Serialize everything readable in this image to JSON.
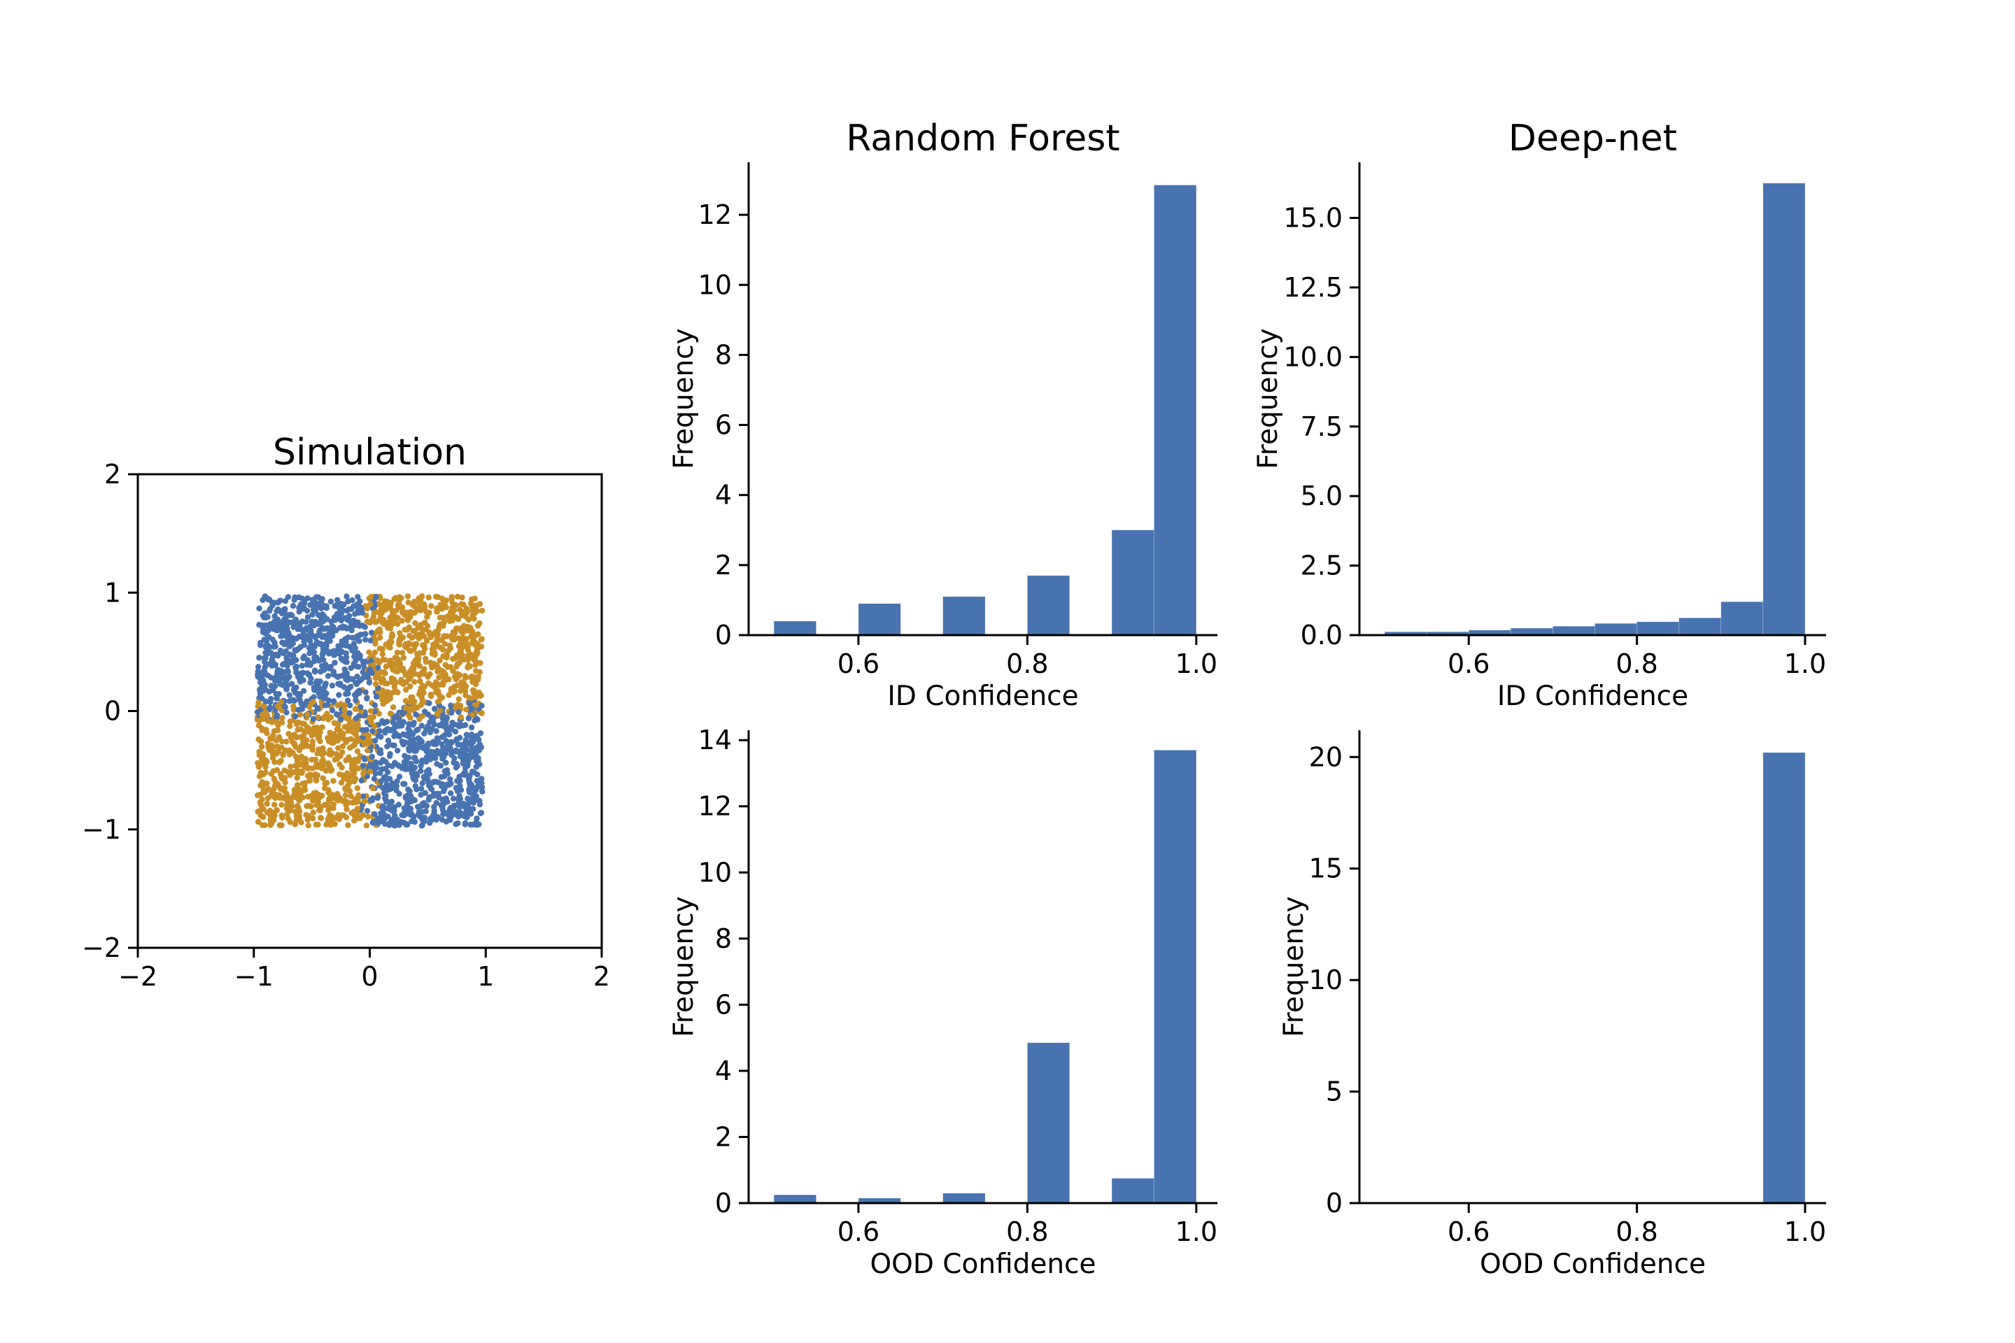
{
  "chart_data": [
    {
      "id": "simulation",
      "type": "scatter",
      "title": "Simulation",
      "xlim": [
        -2,
        2
      ],
      "ylim": [
        -2,
        2
      ],
      "xticks": [
        -2,
        -1,
        0,
        1,
        2
      ],
      "yticks": [
        -2,
        -1,
        0,
        1,
        2
      ],
      "xtick_labels": [
        "−2",
        "−1",
        "0",
        "1",
        "2"
      ],
      "ytick_labels": [
        "−2",
        "−1",
        "0",
        "1",
        "2"
      ],
      "grid": false,
      "description": "Gaussian XOR-like simulation, uniform points in [-1,1]^2; class 0 in quadrants II and IV, class 1 in quadrants I and III",
      "series": [
        {
          "color": "#4873b0",
          "region": "x*y < 0"
        },
        {
          "color": "#c98f27",
          "region": "x*y > 0"
        }
      ]
    },
    {
      "id": "rf-id",
      "type": "bar",
      "title": "Random Forest",
      "xlabel": "ID Confidence",
      "ylabel": "Frequency",
      "xlim": [
        0.47,
        1.025
      ],
      "ylim": [
        0,
        13.5
      ],
      "xticks": [
        0.6,
        0.8,
        1.0
      ],
      "xtick_labels": [
        "0.6",
        "0.8",
        "1.0"
      ],
      "yticks": [
        0,
        2,
        4,
        6,
        8,
        10,
        12
      ],
      "ytick_labels": [
        "0",
        "2",
        "4",
        "6",
        "8",
        "10",
        "12"
      ],
      "bin_edges": [
        0.5,
        0.55,
        0.6,
        0.65,
        0.7,
        0.75,
        0.8,
        0.85,
        0.9,
        0.95,
        1.0
      ],
      "values": [
        0.4,
        0,
        0.9,
        0,
        1.1,
        0,
        1.7,
        0,
        3.0,
        12.85
      ],
      "color": "#4873b0"
    },
    {
      "id": "dn-id",
      "type": "bar",
      "title": "Deep-net",
      "xlabel": "ID Confidence",
      "ylabel": "Frequency",
      "xlim": [
        0.47,
        1.025
      ],
      "ylim": [
        0,
        17
      ],
      "xticks": [
        0.6,
        0.8,
        1.0
      ],
      "xtick_labels": [
        "0.6",
        "0.8",
        "1.0"
      ],
      "yticks": [
        0,
        2.5,
        5,
        7.5,
        10,
        12.5,
        15
      ],
      "ytick_labels": [
        "0.0",
        "2.5",
        "5.0",
        "7.5",
        "10.0",
        "12.5",
        "15.0"
      ],
      "bin_edges": [
        0.5,
        0.55,
        0.6,
        0.65,
        0.7,
        0.75,
        0.8,
        0.85,
        0.9,
        0.95,
        1.0
      ],
      "values": [
        0.12,
        0.12,
        0.18,
        0.25,
        0.32,
        0.42,
        0.48,
        0.62,
        1.2,
        16.25
      ],
      "color": "#4873b0"
    },
    {
      "id": "rf-ood",
      "type": "bar",
      "title": "",
      "xlabel": "OOD Confidence",
      "ylabel": "Frequency",
      "xlim": [
        0.47,
        1.025
      ],
      "ylim": [
        0,
        14.3
      ],
      "xticks": [
        0.6,
        0.8,
        1.0
      ],
      "xtick_labels": [
        "0.6",
        "0.8",
        "1.0"
      ],
      "yticks": [
        0,
        2,
        4,
        6,
        8,
        10,
        12,
        14
      ],
      "ytick_labels": [
        "0",
        "2",
        "4",
        "6",
        "8",
        "10",
        "12",
        "14"
      ],
      "bin_edges": [
        0.5,
        0.55,
        0.6,
        0.65,
        0.7,
        0.75,
        0.8,
        0.85,
        0.9,
        0.95,
        1.0
      ],
      "values": [
        0.25,
        0,
        0.15,
        0,
        0.3,
        0,
        4.85,
        0,
        0.75,
        13.7
      ],
      "color": "#4873b0"
    },
    {
      "id": "dn-ood",
      "type": "bar",
      "title": "",
      "xlabel": "OOD Confidence",
      "ylabel": "Frequency",
      "xlim": [
        0.47,
        1.025
      ],
      "ylim": [
        0,
        21.2
      ],
      "xticks": [
        0.6,
        0.8,
        1.0
      ],
      "xtick_labels": [
        "0.6",
        "0.8",
        "1.0"
      ],
      "yticks": [
        0,
        5,
        10,
        15,
        20
      ],
      "ytick_labels": [
        "0",
        "5",
        "10",
        "15",
        "20"
      ],
      "bin_edges": [
        0.5,
        0.55,
        0.6,
        0.65,
        0.7,
        0.75,
        0.8,
        0.85,
        0.9,
        0.95,
        1.0
      ],
      "values": [
        0,
        0,
        0,
        0,
        0,
        0,
        0.02,
        0,
        0.05,
        20.2
      ],
      "color": "#4873b0"
    }
  ]
}
